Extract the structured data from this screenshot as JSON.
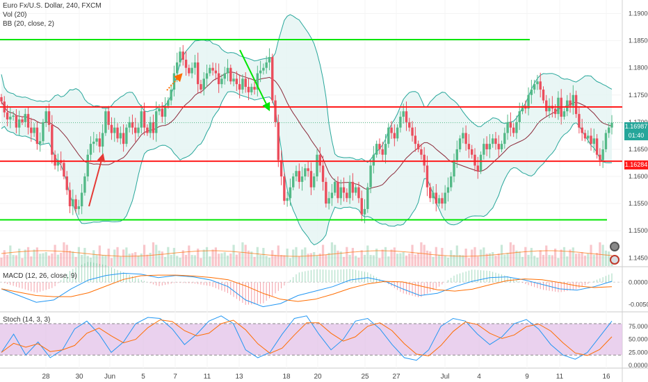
{
  "header": {
    "symbol_line": "Euro Fx/U.S. Dollar, 240, FXCM",
    "vol_line": "Vol (20)",
    "bb_line": "BB (20, close, 2)"
  },
  "panes": {
    "macd_label": "MACD (12, 26, close, 9)",
    "stoch_label": "Stoch (14, 3, 3)"
  },
  "price_badges": {
    "current": "1.16987",
    "countdown": "01:40",
    "level": "1.16284"
  },
  "colors": {
    "up": "#53b987",
    "down": "#eb4d5c",
    "bb_band": "#26a69a",
    "bb_fill": "#e3f4f2",
    "bb_basis": "#8b2a3a",
    "support_resistance_green": "#00e600",
    "support_resistance_red": "#ff1a1a",
    "macd_line": "#2196f3",
    "signal_line": "#ff6d00",
    "stoch_k": "#2196f3",
    "stoch_d": "#ff6d00",
    "stoch_band": "#e1bee7"
  },
  "chart_data": [
    {
      "type": "candlestick",
      "title": "Euro Fx/U.S. Dollar, 240, FXCM",
      "x_tick_labels": [
        "28",
        "30",
        "Jun",
        "5",
        "7",
        "11",
        "13",
        "18",
        "20",
        "25",
        "27",
        "Jul",
        "4",
        "9",
        "11",
        "16"
      ],
      "y_tick_labels": [
        "1.19000",
        "1.18500",
        "1.18000",
        "1.17500",
        "1.17000",
        "1.16500",
        "1.16000",
        "1.15500",
        "1.15000",
        "1.14500"
      ],
      "ylim": [
        1.1435,
        1.1925
      ],
      "horizontal_levels": [
        {
          "value": 1.1852,
          "color": "green"
        },
        {
          "value": 1.1728,
          "color": "red"
        },
        {
          "value": 1.1628,
          "color": "red"
        },
        {
          "value": 1.152,
          "color": "green"
        }
      ],
      "close_path": [
        1.1738,
        1.1718,
        1.1705,
        1.171,
        1.1712,
        1.169,
        1.1705,
        1.17,
        1.1715,
        1.169,
        1.168,
        1.169,
        1.166,
        1.1665,
        1.17,
        1.172,
        1.1695,
        1.164,
        1.162,
        1.163,
        1.1625,
        1.16,
        1.1575,
        1.1545,
        1.1558,
        1.154,
        1.1545,
        1.157,
        1.16,
        1.164,
        1.166,
        1.1664,
        1.167,
        1.1655,
        1.168,
        1.172,
        1.1695,
        1.168,
        1.169,
        1.167,
        1.168,
        1.166,
        1.169,
        1.17,
        1.169,
        1.168,
        1.169,
        1.172,
        1.169,
        1.168,
        1.17,
        1.168,
        1.172,
        1.1725,
        1.171,
        1.173,
        1.174,
        1.176,
        1.179,
        1.181,
        1.183,
        1.1815,
        1.18,
        1.179,
        1.18,
        1.181,
        1.177,
        1.176,
        1.178,
        1.179,
        1.18,
        1.1795,
        1.179,
        1.177,
        1.178,
        1.179,
        1.18,
        1.1775,
        1.178,
        1.177,
        1.176,
        1.178,
        1.1765,
        1.1755,
        1.1765,
        1.176,
        1.179,
        1.1795,
        1.18,
        1.181,
        1.182,
        1.174,
        1.17,
        1.163,
        1.16,
        1.1555,
        1.156,
        1.158,
        1.16,
        1.161,
        1.159,
        1.16,
        1.1615,
        1.161,
        1.158,
        1.16,
        1.164,
        1.162,
        1.159,
        1.155,
        1.156,
        1.157,
        1.159,
        1.156,
        1.158,
        1.157,
        1.156,
        1.159,
        1.157,
        1.158,
        1.156,
        1.153,
        1.154,
        1.158,
        1.162,
        1.164,
        1.166,
        1.165,
        1.164,
        1.166,
        1.169,
        1.168,
        1.167,
        1.169,
        1.171,
        1.172,
        1.17,
        1.169,
        1.1675,
        1.166,
        1.165,
        1.164,
        1.162,
        1.158,
        1.156,
        1.157,
        1.155,
        1.156,
        1.155,
        1.157,
        1.158,
        1.16,
        1.163,
        1.165,
        1.167,
        1.168,
        1.166,
        1.165,
        1.164,
        1.162,
        1.161,
        1.164,
        1.166,
        1.165,
        1.166,
        1.167,
        1.166,
        1.165,
        1.166,
        1.168,
        1.17,
        1.169,
        1.168,
        1.17,
        1.172,
        1.173,
        1.1725,
        1.175,
        1.176,
        1.177,
        1.1775,
        1.176,
        1.174,
        1.172,
        1.173,
        1.1725,
        1.1715,
        1.1745,
        1.171,
        1.172,
        1.174,
        1.173,
        1.175,
        1.1715,
        1.169,
        1.168,
        1.167,
        1.1675,
        1.166,
        1.167,
        1.164,
        1.163,
        1.165,
        1.168,
        1.169,
        1.1699
      ],
      "bollinger_bands": {
        "period": 20,
        "source": "close",
        "stddev": 2
      },
      "annotations": [
        "red up arrow near 30 May",
        "orange dashed arrow near 7 Jun",
        "green down arrow near 13 Jun"
      ]
    },
    {
      "type": "bar",
      "title": "Vol (20)",
      "volume_profile": [
        0.35,
        0.5,
        0.42,
        0.6,
        0.38,
        0.45,
        0.55,
        0.3,
        0.48,
        0.65,
        0.4,
        0.52,
        0.7,
        0.36,
        0.44,
        0.58,
        0.33,
        0.47,
        0.62,
        0.39,
        0.55,
        0.75,
        0.8,
        0.45,
        0.5,
        0.38,
        0.6,
        0.42,
        0.53,
        0.35
      ]
    },
    {
      "type": "line",
      "title": "MACD (12, 26, close, 9)",
      "y_tick_labels": [
        "0.0000",
        "-0.0050"
      ],
      "ylim": [
        -0.0065,
        0.003
      ],
      "macd_path": [
        -0.0015,
        -0.003,
        -0.0045,
        -0.004,
        -0.0015,
        0.0005,
        0.0015,
        0.002,
        0.0018,
        0.001,
        0.0015,
        0.0012,
        0.0005,
        -0.001,
        -0.004,
        -0.0055,
        -0.0048,
        -0.003,
        -0.002,
        -0.001,
        0.0005,
        0.001,
        0.0002,
        -0.0015,
        -0.003,
        -0.0025,
        -0.001,
        0.0002,
        0.001,
        0.0012,
        0.0005,
        -0.0005,
        -0.0015,
        -0.0018,
        -0.001,
        0.0002
      ]
    },
    {
      "type": "line",
      "title": "Stoch (14, 3, 3)",
      "y_tick_labels": [
        "75.0000",
        "50.0000",
        "25.0000",
        "0.0000"
      ],
      "ylim": [
        -5,
        100
      ],
      "band": [
        20,
        80
      ],
      "k_path": [
        25,
        60,
        20,
        45,
        15,
        30,
        70,
        85,
        60,
        25,
        45,
        80,
        92,
        90,
        70,
        40,
        60,
        85,
        95,
        80,
        30,
        15,
        25,
        60,
        90,
        95,
        60,
        30,
        50,
        85,
        90,
        70,
        40,
        15,
        10,
        30,
        75,
        90,
        85,
        60,
        40,
        55,
        80,
        88,
        70,
        40,
        20,
        12,
        25,
        55,
        85
      ]
    }
  ]
}
